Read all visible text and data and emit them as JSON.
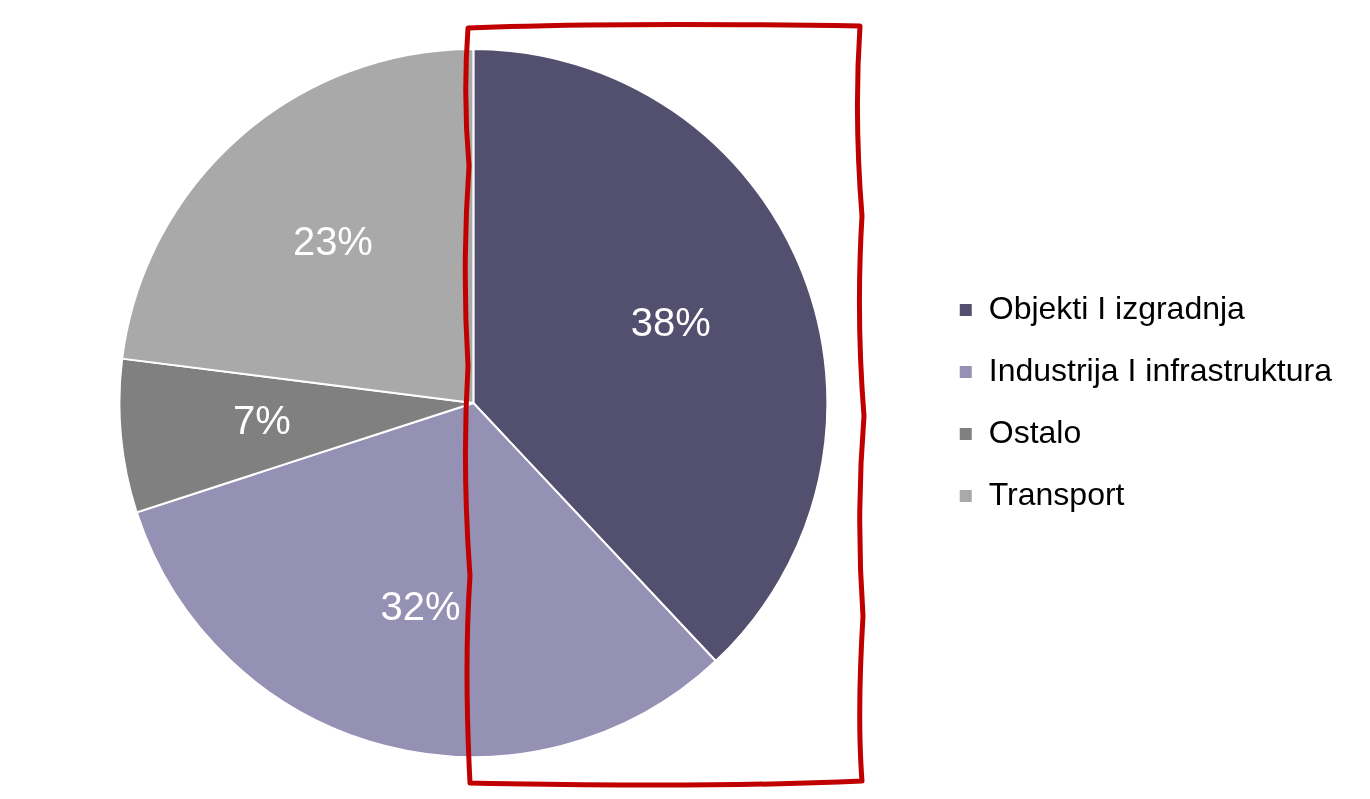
{
  "chart_data": {
    "type": "pie",
    "categories": [
      "Objekti I izgradnja",
      "Industrija I infrastruktura",
      "Ostalo",
      "Transport"
    ],
    "values": [
      38,
      32,
      7,
      23
    ],
    "colors": [
      "#534f6e",
      "#9591b4",
      "#808080",
      "#a9a9a9"
    ],
    "value_labels": [
      "38%",
      "32%",
      "7%",
      "23%"
    ],
    "legend": "right"
  }
}
